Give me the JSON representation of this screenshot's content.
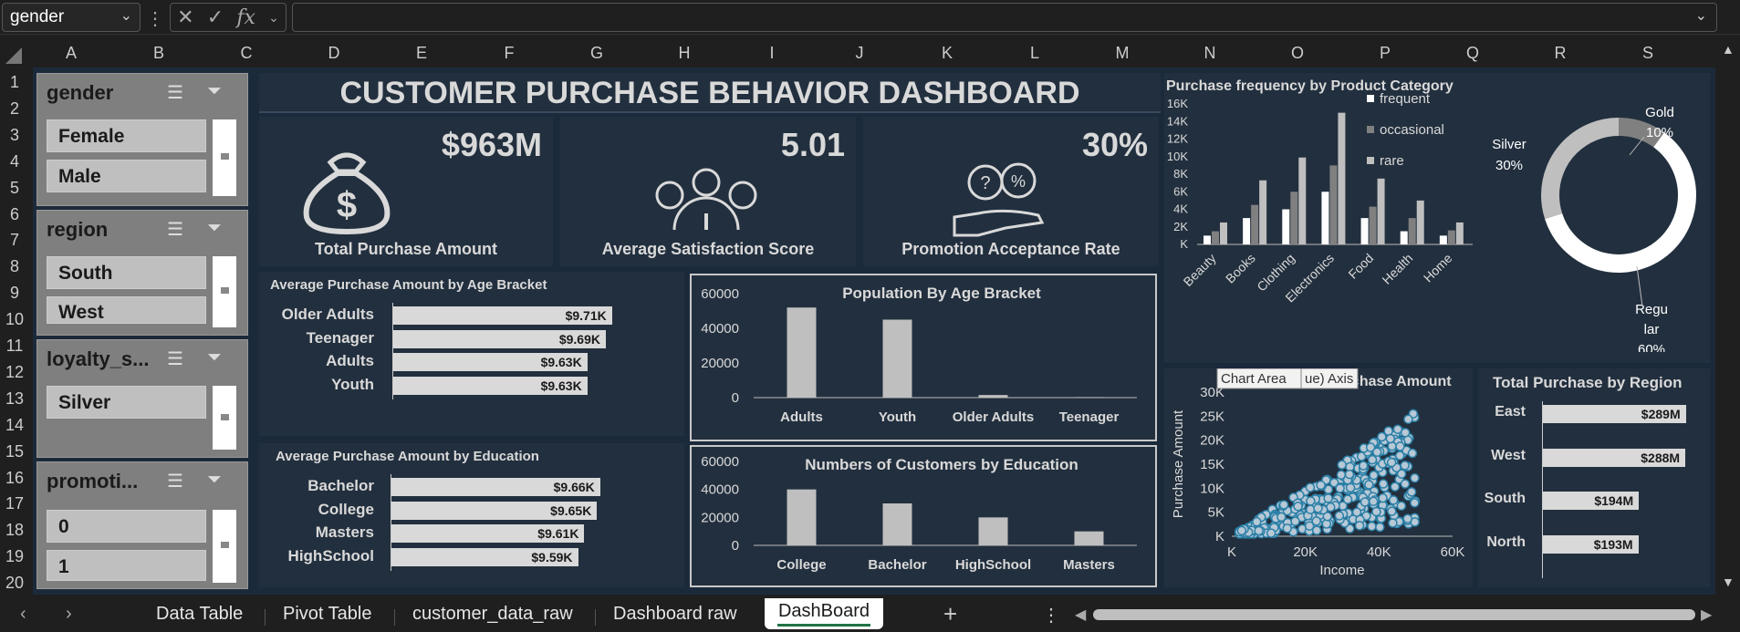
{
  "formula_bar": {
    "name_box": "gender",
    "fx": "fx",
    "formula": ""
  },
  "columns": [
    "A",
    "B",
    "C",
    "D",
    "E",
    "F",
    "G",
    "H",
    "I",
    "J",
    "K",
    "L",
    "M",
    "N",
    "O",
    "P",
    "Q",
    "R",
    "S"
  ],
  "rows": [
    "1",
    "2",
    "3",
    "4",
    "5",
    "6",
    "7",
    "8",
    "9",
    "10",
    "11",
    "12",
    "13",
    "14",
    "15",
    "16",
    "17",
    "18",
    "19",
    "20"
  ],
  "slicers": [
    {
      "title": "gender",
      "items": [
        "Female",
        "Male"
      ]
    },
    {
      "title": "region",
      "items": [
        "South",
        "West"
      ]
    },
    {
      "title": "loyalty_s...",
      "items": [
        "Silver"
      ]
    },
    {
      "title": "promoti...",
      "items": [
        "0",
        "1"
      ]
    }
  ],
  "dashboard": {
    "title": "CUSTOMER PURCHASE BEHAVIOR DASHBOARD"
  },
  "kpis": [
    {
      "value": "$963M",
      "label": "Total Purchase Amount",
      "icon": "money-bag-icon"
    },
    {
      "value": "5.01",
      "label": "Average Satisfaction Score",
      "icon": "satisfaction-gauge-icon"
    },
    {
      "value": "30%",
      "label": "Promotion Acceptance Rate",
      "icon": "promotion-hand-icon"
    }
  ],
  "charts": {
    "age_purchase": {
      "title": "Average Purchase Amount by Age Bracket",
      "categories": [
        "Older Adults",
        "Teenager",
        "Adults",
        "Youth"
      ],
      "labels": [
        "$9.71K",
        "$9.69K",
        "$9.63K",
        "$9.63K"
      ],
      "values": [
        9.71,
        9.69,
        9.63,
        9.63
      ]
    },
    "edu_purchase": {
      "title": "Average Purchase Amount by Education",
      "categories": [
        "Bachelor",
        "College",
        "Masters",
        "HighSchool"
      ],
      "labels": [
        "$9.66K",
        "$9.65K",
        "$9.61K",
        "$9.59K"
      ],
      "values": [
        9.66,
        9.65,
        9.61,
        9.59
      ]
    },
    "pop_age": {
      "title": "Population By Age Bracket",
      "categories": [
        "Adults",
        "Youth",
        "Older Adults",
        "Teenager"
      ],
      "values": [
        52000,
        45000,
        1500,
        300
      ],
      "yticks": [
        "60000",
        "40000",
        "20000",
        "0"
      ]
    },
    "edu_count": {
      "title": "Numbers of Customers by Education",
      "categories": [
        "College",
        "Bachelor",
        "HighSchool",
        "Masters"
      ],
      "values": [
        40000,
        30000,
        20000,
        10000
      ],
      "yticks": [
        "60000",
        "40000",
        "20000",
        "0"
      ]
    },
    "freq_cat": {
      "title": "Purchase frequency by Product Category",
      "categories": [
        "Beauty",
        "Books",
        "Clothing",
        "Electronics",
        "Food",
        "Health",
        "Home"
      ],
      "series": [
        {
          "name": "frequent",
          "color": "#ffffff",
          "values": [
            1000,
            3000,
            4000,
            6000,
            3000,
            1500,
            1000
          ]
        },
        {
          "name": "occasional",
          "color": "#808080",
          "values": [
            1500,
            4500,
            6000,
            9000,
            4300,
            3000,
            1600
          ]
        },
        {
          "name": "rare",
          "color": "#bfbfbf",
          "values": [
            2500,
            7300,
            9900,
            15000,
            7500,
            5000,
            2500
          ]
        }
      ],
      "yticks": [
        "16K",
        "14K",
        "12K",
        "10K",
        "8K",
        "6K",
        "4K",
        "2K",
        "K"
      ]
    },
    "loyalty": {
      "slices": [
        {
          "name": "Gold",
          "label": "Gold\n10%",
          "value": 10,
          "color": "#808080"
        },
        {
          "name": "Regular",
          "label": "Regu\nlar\n60%",
          "value": 60,
          "color": "#ffffff"
        },
        {
          "name": "Silver",
          "label": "Silver\n30%",
          "value": 30,
          "color": "#bfbfbf"
        }
      ],
      "labels": {
        "gold": "Gold",
        "gold_pct": "10%",
        "silver": "Silver",
        "silver_pct": "30%",
        "reg1": "Regu",
        "reg2": "lar",
        "reg_pct": "60%"
      }
    },
    "scatter": {
      "title": "Income VS Purchase Amount",
      "xlabel": "Income",
      "ylabel": "Purchase Amount",
      "xticks": [
        "K",
        "20K",
        "40K",
        "60K"
      ],
      "yticks": [
        "30K",
        "25K",
        "20K",
        "15K",
        "10K",
        "5K",
        "K"
      ],
      "tooltip": "Chart Area",
      "tooltip2": "ue) Axis"
    },
    "region": {
      "title": "Total Purchase by Region",
      "categories": [
        "East",
        "West",
        "South",
        "North"
      ],
      "labels": [
        "$289M",
        "$288M",
        "$194M",
        "$193M"
      ],
      "values": [
        289,
        288,
        194,
        193
      ]
    }
  },
  "tabs": [
    "Data Table",
    "Pivot Table",
    "customer_data_raw",
    "Dashboard raw",
    "DashBoard"
  ],
  "active_tab": "DashBoard"
}
